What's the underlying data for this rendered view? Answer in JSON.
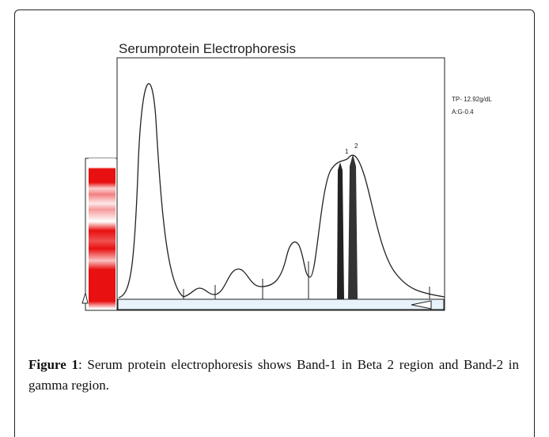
{
  "figure": {
    "title": "Serumprotein Electrophoresis",
    "annotations": [
      "TP- 12.92g/dL",
      "A:G-0.4"
    ],
    "band_labels": [
      "1",
      "2"
    ]
  },
  "caption": {
    "label": "Figure 1",
    "text": ": Serum protein electrophoresis shows Band-1 in Beta 2 region and Band-2 in gamma region."
  }
}
